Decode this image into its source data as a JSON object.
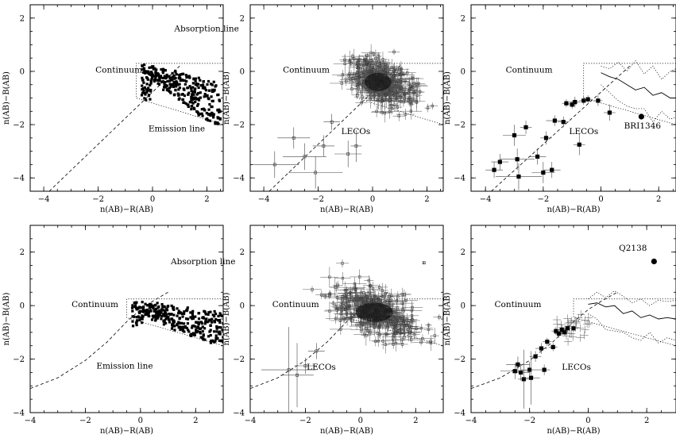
{
  "chart_data": [
    {
      "type": "scatter",
      "xlabel": "n(AB)−R(AB)",
      "ylabel": "n(AB)−B(AB)",
      "xlim": [
        -4.5,
        2.6
      ],
      "ylim": [
        -4.5,
        2.5
      ],
      "xticks": [
        "−4",
        "−2",
        "0",
        "2"
      ],
      "xtick_values": [
        -4,
        -2,
        0,
        2
      ],
      "yticks": [
        "−4",
        "−2",
        "0",
        "2"
      ],
      "ytick_values": [
        -4,
        -2,
        0,
        2
      ],
      "annotations": [
        {
          "text": "Absorption line",
          "x": 0.8,
          "y": 1.5
        },
        {
          "text": "Continuum",
          "x": -2.1,
          "y": -0.05
        },
        {
          "text": "Emission line",
          "x": -0.15,
          "y": -2.25
        }
      ],
      "region": {
        "x_start": -0.6,
        "y_top": 0.3,
        "y_bottom_left": -1.0,
        "y_bottom_right": -2.0
      },
      "diagonal": {
        "x": [
          -3.8,
          1.0
        ],
        "y": [
          -4.5,
          0.2
        ]
      },
      "cloud": {
        "kind": "tracks",
        "x_range": [
          -0.4,
          2.5
        ],
        "y_range": [
          -2.0,
          0.25
        ]
      },
      "lines": [],
      "points": []
    },
    {
      "type": "scatter",
      "xlabel": "n(AB)−R(AB)",
      "ylabel": "n(AB)−B(AB)",
      "xlim": [
        -4.5,
        2.6
      ],
      "ylim": [
        -4.5,
        2.5
      ],
      "xticks": [
        "−4",
        "−2",
        "0",
        "2"
      ],
      "xtick_values": [
        -4,
        -2,
        0,
        2
      ],
      "yticks": [
        "−4",
        "−2",
        "0",
        "2"
      ],
      "ytick_values": [
        -4,
        -2,
        0,
        2
      ],
      "annotations": [
        {
          "text": "Continuum",
          "x": -3.3,
          "y": -0.05
        },
        {
          "text": "LECOs",
          "x": -1.15,
          "y": -2.35
        }
      ],
      "region": {
        "x_start": -0.6,
        "y_top": 0.3,
        "y_bottom_left": -1.0,
        "y_bottom_right": -2.0
      },
      "diagonal": {
        "x": [
          -3.8,
          1.0
        ],
        "y": [
          -4.5,
          0.2
        ]
      },
      "cloud": {
        "kind": "errorcloud",
        "cx": 0.2,
        "cy": -0.4,
        "sx": 0.55,
        "sy": 0.38
      },
      "lines": [],
      "points": [
        {
          "x": -2.9,
          "y": -2.5,
          "ex": 0.6,
          "ey": 0.4
        },
        {
          "x": -2.5,
          "y": -3.2,
          "ex": 0.8,
          "ey": 0.5
        },
        {
          "x": -2.1,
          "y": -3.8,
          "ex": 1.0,
          "ey": 0.6
        },
        {
          "x": -1.8,
          "y": -2.8,
          "ex": 0.4,
          "ey": 0.4
        },
        {
          "x": -1.5,
          "y": -1.9,
          "ex": 0.3,
          "ey": 0.3
        },
        {
          "x": -0.9,
          "y": -3.1,
          "ex": 0.5,
          "ey": 0.5
        },
        {
          "x": -0.6,
          "y": -2.8,
          "ex": 0.2,
          "ey": 0.6
        },
        {
          "x": -3.6,
          "y": -3.5,
          "ex": 0.9,
          "ey": 0.5
        }
      ]
    },
    {
      "type": "scatter",
      "xlabel": "n(AB)−R(AB)",
      "ylabel": "n(AB)−B(AB)",
      "xlim": [
        -4.5,
        2.6
      ],
      "ylim": [
        -4.5,
        2.5
      ],
      "xticks": [
        "−4",
        "−2",
        "0",
        "2"
      ],
      "xtick_values": [
        -4,
        -2,
        0,
        2
      ],
      "yticks": [
        "−4",
        "−2",
        "0",
        "2"
      ],
      "ytick_values": [
        -4,
        -2,
        0,
        2
      ],
      "annotations": [
        {
          "text": "Continuum",
          "x": -3.3,
          "y": -0.05
        },
        {
          "text": "LECOs",
          "x": -1.1,
          "y": -2.35
        },
        {
          "text": "BRI1346",
          "x": 0.8,
          "y": -2.15
        }
      ],
      "region": {
        "x_start": -0.6,
        "y_top": 0.3,
        "y_bottom_left": -1.0,
        "y_bottom_right": -2.0
      },
      "diagonal": {
        "x": [
          -3.8,
          1.0
        ],
        "y": [
          -4.5,
          0.2
        ]
      },
      "cloud": {
        "kind": "none"
      },
      "lines": [
        {
          "style": "solid",
          "x": [
            0.0,
            0.3,
            0.6,
            0.9,
            1.2,
            1.5,
            1.8,
            2.1,
            2.4,
            2.6
          ],
          "y": [
            -0.05,
            -0.2,
            -0.3,
            -0.5,
            -0.7,
            -0.6,
            -0.9,
            -0.8,
            -1.0,
            -1.0
          ]
        },
        {
          "style": "dotted",
          "x": [
            0.0,
            0.3,
            0.6,
            0.9,
            1.2,
            1.5,
            1.8,
            2.1,
            2.4,
            2.6
          ],
          "y": [
            0.2,
            0.1,
            0.35,
            0.0,
            0.4,
            -0.1,
            0.2,
            -0.3,
            0.0,
            0.1
          ]
        },
        {
          "style": "dotted",
          "x": [
            0.0,
            0.3,
            0.6,
            0.9,
            1.2,
            1.5,
            1.8,
            2.1,
            2.4,
            2.6
          ],
          "y": [
            -0.5,
            -0.8,
            -1.1,
            -1.3,
            -1.4,
            -1.4,
            -1.9,
            -1.5,
            -1.8,
            -1.7
          ]
        }
      ],
      "points": [
        {
          "x": -3.0,
          "y": -2.4,
          "ex": 0.4,
          "ey": 0.4
        },
        {
          "x": -2.9,
          "y": -3.3,
          "ex": 0.6,
          "ey": 0.4
        },
        {
          "x": -2.85,
          "y": -3.95,
          "ex": 0.8,
          "ey": 0.5
        },
        {
          "x": -3.5,
          "y": -3.4,
          "ex": 0.3,
          "ey": 0.3
        },
        {
          "x": -3.7,
          "y": -3.7,
          "ex": 0.3,
          "ey": 0.3
        },
        {
          "x": -2.6,
          "y": -2.1,
          "ex": 0.2,
          "ey": 0.25
        },
        {
          "x": -2.2,
          "y": -3.2,
          "ex": 0.3,
          "ey": 0.3
        },
        {
          "x": -2.0,
          "y": -3.8,
          "ex": 0.4,
          "ey": 0.4
        },
        {
          "x": -1.7,
          "y": -3.7,
          "ex": 0.3,
          "ey": 0.3
        },
        {
          "x": -1.9,
          "y": -2.5,
          "ex": 0.2,
          "ey": 0.25
        },
        {
          "x": -1.6,
          "y": -1.85,
          "ex": 0.3,
          "ey": 0.2
        },
        {
          "x": -1.3,
          "y": -1.9,
          "ex": 0.2,
          "ey": 0.2
        },
        {
          "x": -1.2,
          "y": -1.2,
          "ex": 0.15,
          "ey": 0.15
        },
        {
          "x": -1.0,
          "y": -1.25,
          "ex": 0.15,
          "ey": 0.15
        },
        {
          "x": -0.6,
          "y": -1.1,
          "ex": 0.15,
          "ey": 0.15
        },
        {
          "x": -0.45,
          "y": -1.05,
          "ex": 0.15,
          "ey": 0.15
        },
        {
          "x": -0.75,
          "y": -2.75,
          "ex": 0.2,
          "ey": 0.4
        },
        {
          "x": -0.1,
          "y": -1.1,
          "ex": 0.15,
          "ey": 0.2
        },
        {
          "x": 0.3,
          "y": -1.55,
          "ex": 0.2,
          "ey": 0.3
        },
        {
          "x": -0.9,
          "y": -1.15,
          "ex": 0.2,
          "ey": 0.2
        }
      ],
      "special": {
        "x": 1.4,
        "y": -1.7
      }
    },
    {
      "type": "scatter",
      "xlabel": "n(AB)−R(AB)",
      "ylabel": "n(AB)−B(AB)",
      "xlim": [
        -4,
        3
      ],
      "ylim": [
        -4,
        3
      ],
      "xticks": [
        "−4",
        "−2",
        "0",
        "2"
      ],
      "xtick_values": [
        -4,
        -2,
        0,
        2
      ],
      "yticks": [
        "−4",
        "−2",
        "0",
        "2"
      ],
      "ytick_values": [
        -4,
        -2,
        0,
        2
      ],
      "annotations": [
        {
          "text": "Absorption line",
          "x": 1.1,
          "y": 1.55
        },
        {
          "text": "Continuum",
          "x": -2.5,
          "y": -0.05
        },
        {
          "text": "Emission line",
          "x": -1.6,
          "y": -2.35
        }
      ],
      "region": {
        "x_start": -0.5,
        "y_top": 0.25,
        "y_bottom_left": -0.45,
        "y_bottom_right": -1.5
      },
      "diagonal": {
        "x": [
          -4.0,
          -3.0,
          -2.0,
          -1.2,
          -0.5,
          0.0,
          0.5,
          1.0
        ],
        "y": [
          -3.1,
          -2.7,
          -2.05,
          -1.35,
          -0.6,
          -0.15,
          0.2,
          0.5
        ]
      },
      "cloud": {
        "kind": "tracks",
        "x_range": [
          -0.3,
          3.0
        ],
        "y_range": [
          -1.4,
          0.15
        ]
      },
      "lines": [],
      "points": []
    },
    {
      "type": "scatter",
      "xlabel": "n(AB)−R(AB)",
      "ylabel": "n(AB)−B(AB)",
      "xlim": [
        -4,
        3
      ],
      "ylim": [
        -4,
        3
      ],
      "xticks": [
        "−4",
        "−2",
        "0",
        "2"
      ],
      "xtick_values": [
        -4,
        -2,
        0,
        2
      ],
      "yticks": [
        "−4",
        "−2",
        "0",
        "2"
      ],
      "ytick_values": [
        -4,
        -2,
        0,
        2
      ],
      "annotations": [
        {
          "text": "Continuum",
          "x": -3.2,
          "y": -0.05
        },
        {
          "text": "LECOs",
          "x": -1.95,
          "y": -2.4
        }
      ],
      "region": {
        "x_start": -0.5,
        "y_top": 0.25,
        "y_bottom_left": -0.45,
        "y_bottom_right": -1.5
      },
      "diagonal": {
        "x": [
          -4.0,
          -3.0,
          -2.0,
          -1.2,
          -0.5,
          0.0,
          0.5,
          1.0
        ],
        "y": [
          -3.1,
          -2.7,
          -2.05,
          -1.35,
          -0.6,
          -0.15,
          0.2,
          0.5
        ]
      },
      "cloud": {
        "kind": "errorcloud",
        "cx": 0.5,
        "cy": -0.25,
        "sx": 0.75,
        "sy": 0.4
      },
      "lines": [],
      "points": [
        {
          "x": -2.6,
          "y": -2.4,
          "ex": 1.0,
          "ey": 1.6
        },
        {
          "x": -2.3,
          "y": -2.6,
          "ex": 0.6,
          "ey": 1.2
        },
        {
          "x": -2.0,
          "y": -2.25,
          "ex": 0.4,
          "ey": 0.3
        },
        {
          "x": -1.6,
          "y": -1.7,
          "ex": 0.3,
          "ey": 0.3
        },
        {
          "x": 2.3,
          "y": 1.6,
          "ex": 0.05,
          "ey": 0.05
        }
      ]
    },
    {
      "type": "scatter",
      "xlabel": "n(AB)−R(AB)",
      "ylabel": "n(AB)−B(AB)",
      "xlim": [
        -4,
        3
      ],
      "ylim": [
        -4,
        3
      ],
      "xticks": [
        "−4",
        "−2",
        "0",
        "2"
      ],
      "xtick_values": [
        -4,
        -2,
        0,
        2
      ],
      "yticks": [
        "−4",
        "−2",
        "0",
        "2"
      ],
      "ytick_values": [
        -4,
        -2,
        0,
        2
      ],
      "annotations": [
        {
          "text": "Continuum",
          "x": -3.2,
          "y": -0.05
        },
        {
          "text": "LECOs",
          "x": -0.9,
          "y": -2.4
        },
        {
          "text": "Q2138",
          "x": 1.05,
          "y": 2.05
        }
      ],
      "region": {
        "x_start": -0.5,
        "y_top": 0.25,
        "y_bottom_left": -0.45,
        "y_bottom_right": -1.5
      },
      "diagonal": {
        "x": [
          -4.0,
          -3.0,
          -2.0,
          -1.2,
          -0.5,
          0.0,
          0.5,
          1.0
        ],
        "y": [
          -3.1,
          -2.7,
          -2.05,
          -1.35,
          -0.6,
          -0.15,
          0.2,
          0.5
        ]
      },
      "cloud": {
        "kind": "none"
      },
      "lines": [
        {
          "style": "solid",
          "x": [
            0.0,
            0.3,
            0.6,
            0.9,
            1.2,
            1.5,
            1.8,
            2.1,
            2.4,
            2.7,
            3.0
          ],
          "y": [
            0.05,
            0.1,
            -0.05,
            0.0,
            -0.3,
            -0.2,
            -0.45,
            -0.35,
            -0.5,
            -0.45,
            -0.5
          ]
        },
        {
          "style": "dotted",
          "x": [
            0.0,
            0.3,
            0.6,
            0.9,
            1.2,
            1.5,
            1.8,
            2.1,
            2.4,
            2.7,
            3.0
          ],
          "y": [
            0.25,
            0.5,
            0.3,
            0.55,
            0.35,
            0.1,
            0.25,
            0.0,
            0.2,
            0.15,
            0.2
          ]
        },
        {
          "style": "dotted",
          "x": [
            0.0,
            0.3,
            0.6,
            0.9,
            1.2,
            1.5,
            1.8,
            2.1,
            2.4,
            2.7,
            3.0
          ],
          "y": [
            -0.3,
            -0.5,
            -0.9,
            -0.95,
            -1.0,
            -1.2,
            -1.3,
            -1.0,
            -1.4,
            -1.2,
            -1.3
          ]
        }
      ],
      "points": [
        {
          "x": -2.4,
          "y": -2.2,
          "ex": 0.4,
          "ey": 0.3
        },
        {
          "x": -2.3,
          "y": -2.5,
          "ex": 0.3,
          "ey": 0.3
        },
        {
          "x": -2.2,
          "y": -2.75,
          "ex": 0.2,
          "ey": 1.1
        },
        {
          "x": -2.0,
          "y": -2.4,
          "ex": 0.3,
          "ey": 0.3
        },
        {
          "x": -1.95,
          "y": -2.7,
          "ex": 0.3,
          "ey": 1.0
        },
        {
          "x": -1.8,
          "y": -1.9,
          "ex": 0.2,
          "ey": 0.2
        },
        {
          "x": -1.6,
          "y": -1.6,
          "ex": 0.2,
          "ey": 0.2
        },
        {
          "x": -1.5,
          "y": -2.4,
          "ex": 0.2,
          "ey": 0.2
        },
        {
          "x": -1.4,
          "y": -1.35,
          "ex": 0.15,
          "ey": 0.15
        },
        {
          "x": -1.2,
          "y": -1.55,
          "ex": 0.15,
          "ey": 0.15
        },
        {
          "x": -1.0,
          "y": -1.05,
          "ex": 0.15,
          "ey": 0.15
        },
        {
          "x": -0.9,
          "y": -0.9,
          "ex": 0.15,
          "ey": 0.15
        },
        {
          "x": -0.8,
          "y": -1.0,
          "ex": 0.15,
          "ey": 0.15
        },
        {
          "x": -0.7,
          "y": -0.85,
          "ex": 0.15,
          "ey": 0.15
        },
        {
          "x": -0.5,
          "y": -0.85,
          "ex": 0.15,
          "ey": 0.15
        },
        {
          "x": -1.1,
          "y": -0.95,
          "ex": 0.15,
          "ey": 0.15
        },
        {
          "x": -2.5,
          "y": -2.45,
          "ex": 0.5,
          "ey": 0.3
        }
      ],
      "special": {
        "x": 2.25,
        "y": 1.65
      },
      "extra_cloud": {
        "cx": -0.5,
        "cy": -0.8,
        "n": 30
      }
    }
  ]
}
